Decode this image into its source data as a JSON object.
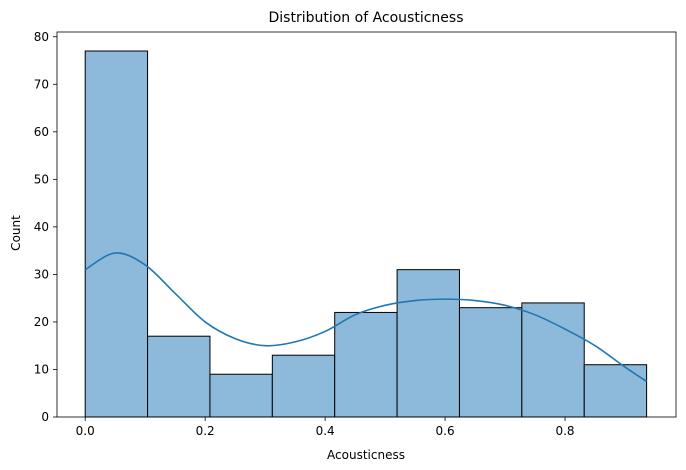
{
  "chart_data": {
    "type": "histogram",
    "title": "Distribution of Acousticness",
    "xlabel": "Acousticness",
    "ylabel": "Count",
    "xlim": [
      -0.047,
      0.985
    ],
    "ylim": [
      0,
      81
    ],
    "bin_edges": [
      0.0,
      0.104,
      0.208,
      0.312,
      0.416,
      0.52,
      0.624,
      0.728,
      0.832,
      0.936
    ],
    "counts": [
      77,
      17,
      9,
      13,
      22,
      31,
      23,
      24,
      11
    ],
    "x_ticks": [
      0.0,
      0.2,
      0.4,
      0.6,
      0.8
    ],
    "x_tick_labels": [
      "0.0",
      "0.2",
      "0.4",
      "0.6",
      "0.8"
    ],
    "y_ticks": [
      0,
      10,
      20,
      30,
      40,
      50,
      60,
      70,
      80
    ],
    "y_tick_labels": [
      "0",
      "10",
      "20",
      "30",
      "40",
      "50",
      "60",
      "70",
      "80"
    ],
    "kde": {
      "x": [
        0.0,
        0.05,
        0.1,
        0.15,
        0.2,
        0.25,
        0.3,
        0.35,
        0.4,
        0.45,
        0.5,
        0.55,
        0.6,
        0.65,
        0.7,
        0.75,
        0.8,
        0.85,
        0.9,
        0.936
      ],
      "y": [
        31,
        34.5,
        32,
        26,
        20,
        16.5,
        15,
        15.8,
        18,
        21.5,
        23.5,
        24.5,
        24.8,
        24.5,
        23.5,
        21.5,
        18.5,
        15,
        10.5,
        7.5
      ]
    },
    "colors": {
      "bar_fill": "#8db9da",
      "bar_edge": "#000000",
      "kde_line": "#1f77b4"
    },
    "grid": false,
    "legend": "none"
  }
}
